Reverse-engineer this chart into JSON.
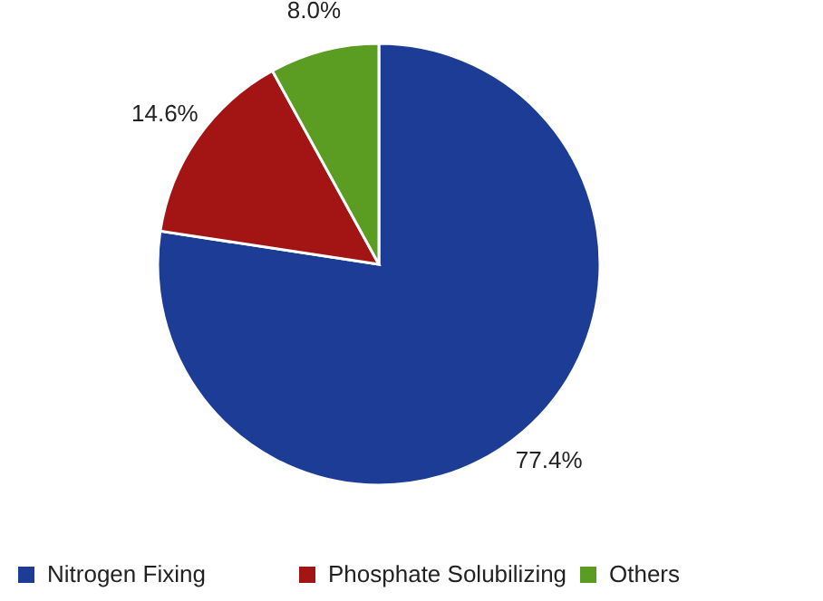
{
  "chart_data": {
    "type": "pie",
    "categories": [
      "Nitrogen Fixing",
      "Phosphate Solubilizing",
      "Others"
    ],
    "values": [
      77.4,
      14.6,
      8.0
    ],
    "colors": [
      "#1c3c96",
      "#a31515",
      "#5b9c22"
    ],
    "value_labels": [
      "77.4%",
      "14.6%",
      "8.0%"
    ],
    "legend": "bottom"
  }
}
